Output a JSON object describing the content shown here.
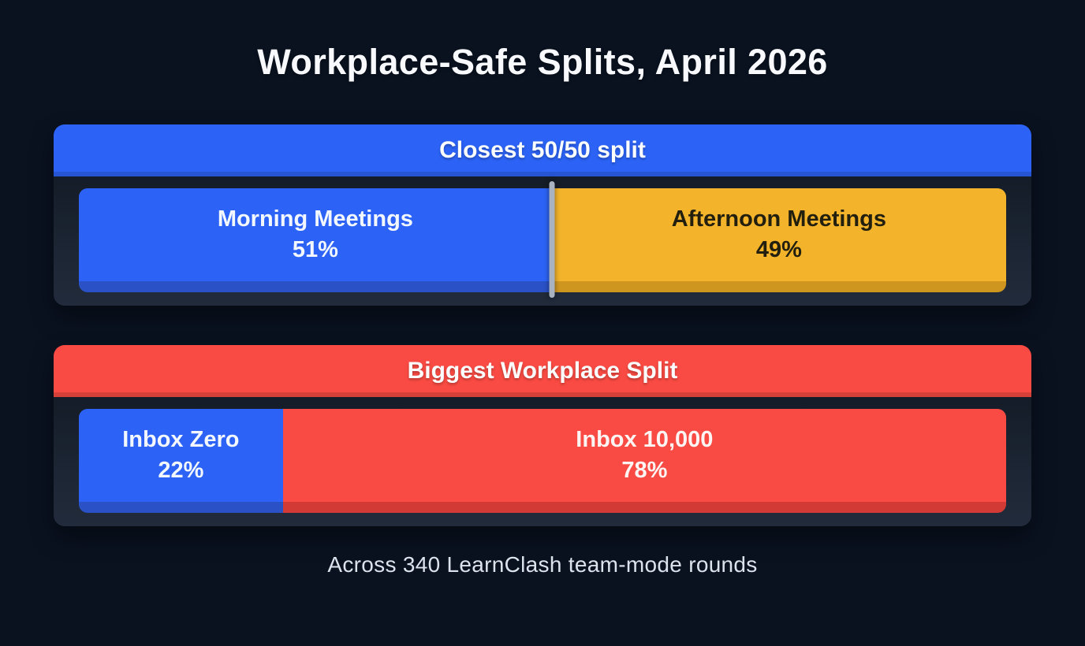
{
  "title": "Workplace-Safe Splits, April 2026",
  "footer": "Across 340 LearnClash team-mode rounds",
  "colors": {
    "background": "#0a1220",
    "panel_body": "#1c2533",
    "blue": "#2c63f6",
    "blue_shadow": "#2a51c6",
    "yellow": "#f3b42b",
    "yellow_shadow": "#cf961f",
    "red": "#f94b43",
    "red_shadow": "#d23b35",
    "divider": "#a9b2c1",
    "title_text": "#f7f9fc",
    "footer_text": "#dde3ec"
  },
  "panels": [
    {
      "header": "Closest 50/50 split",
      "header_color": "#2c63f6",
      "divider": true,
      "segments": [
        {
          "label": "Morning Meetings",
          "percent": "51%",
          "value": 51,
          "color": "#2c63f6",
          "shadow": "#2a51c6",
          "text_color": "#f3f7ff"
        },
        {
          "label": "Afternoon Meetings",
          "percent": "49%",
          "value": 49,
          "color": "#f3b42b",
          "shadow": "#cf961f",
          "text_color": "#231f0e"
        }
      ]
    },
    {
      "header": "Biggest Workplace Split",
      "header_color": "#f94b43",
      "divider": false,
      "segments": [
        {
          "label": "Inbox Zero",
          "percent": "22%",
          "value": 22,
          "color": "#2c63f6",
          "shadow": "#2a51c6",
          "text_color": "#f3f7ff"
        },
        {
          "label": "Inbox 10,000",
          "percent": "78%",
          "value": 78,
          "color": "#f94b43",
          "shadow": "#d23b35",
          "text_color": "#fdf5f4"
        }
      ]
    }
  ],
  "chart_data": [
    {
      "type": "bar",
      "variant": "100-percent-stacked-horizontal",
      "title": "Closest 50/50 split",
      "categories": [
        "Morning Meetings",
        "Afternoon Meetings"
      ],
      "values": [
        51,
        49
      ],
      "unit": "percent",
      "colors": [
        "#2c63f6",
        "#f3b42b"
      ],
      "data_labels": [
        "Morning Meetings 51%",
        "Afternoon Meetings 49%"
      ],
      "divider_marker_at": 51,
      "axes": "none",
      "grid": false,
      "legend": "none"
    },
    {
      "type": "bar",
      "variant": "100-percent-stacked-horizontal",
      "title": "Biggest Workplace Split",
      "categories": [
        "Inbox Zero",
        "Inbox 10,000"
      ],
      "values": [
        22,
        78
      ],
      "unit": "percent",
      "colors": [
        "#2c63f6",
        "#f94b43"
      ],
      "data_labels": [
        "Inbox Zero 22%",
        "Inbox 10,000 78%"
      ],
      "divider_marker_at": null,
      "axes": "none",
      "grid": false,
      "legend": "none"
    }
  ]
}
